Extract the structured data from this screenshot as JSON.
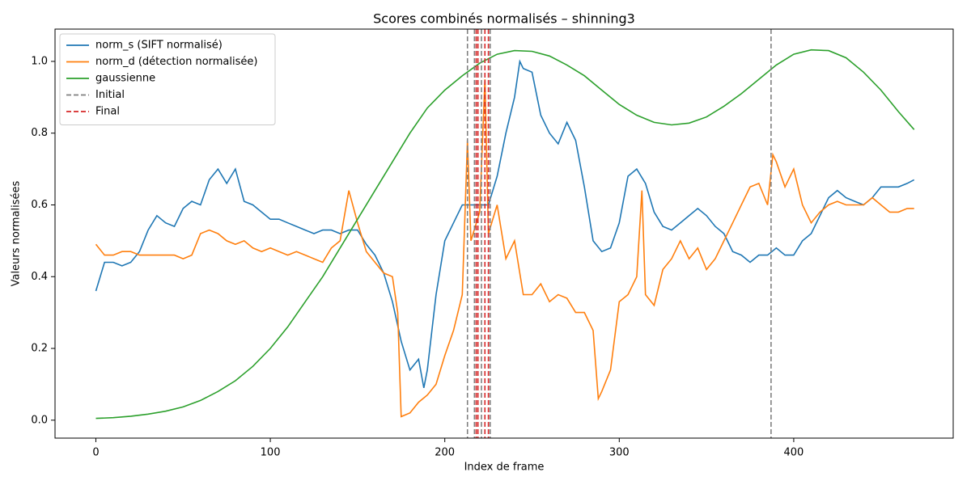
{
  "chart_data": {
    "type": "line",
    "title": "Scores combinés normalisés – shinning3",
    "x_label": "Index de frame",
    "y_label": "Valeurs normalisées",
    "xlim": [
      -23.4,
      491.4
    ],
    "ylim": [
      -0.05,
      1.09
    ],
    "xticks": [
      0,
      100,
      200,
      300,
      400
    ],
    "yticks": [
      {
        "value": 0,
        "label": "0.0"
      },
      0.2,
      0.4,
      0.6,
      0.8,
      {
        "value": 1,
        "label": "1.0"
      }
    ],
    "legend": "upper left",
    "series": [
      {
        "name": "norm_s (SIFT normalisé)",
        "color": "#1f77b4",
        "x": [
          0,
          5,
          10,
          15,
          20,
          25,
          30,
          35,
          40,
          45,
          50,
          55,
          60,
          65,
          70,
          75,
          80,
          85,
          90,
          95,
          100,
          105,
          110,
          115,
          120,
          125,
          130,
          135,
          140,
          145,
          150,
          155,
          160,
          165,
          170,
          175,
          180,
          185,
          188,
          190,
          195,
          200,
          205,
          210,
          215,
          220,
          225,
          230,
          235,
          240,
          243,
          245,
          250,
          255,
          260,
          265,
          270,
          275,
          280,
          285,
          290,
          295,
          300,
          305,
          310,
          315,
          320,
          325,
          330,
          335,
          340,
          345,
          350,
          355,
          360,
          365,
          370,
          375,
          380,
          385,
          390,
          395,
          400,
          405,
          410,
          415,
          420,
          425,
          430,
          435,
          440,
          445,
          450,
          455,
          460,
          465,
          469
        ],
        "values": [
          0.36,
          0.44,
          0.44,
          0.43,
          0.44,
          0.47,
          0.53,
          0.57,
          0.55,
          0.54,
          0.59,
          0.61,
          0.6,
          0.67,
          0.7,
          0.66,
          0.7,
          0.61,
          0.6,
          0.58,
          0.56,
          0.56,
          0.55,
          0.54,
          0.53,
          0.52,
          0.53,
          0.53,
          0.52,
          0.53,
          0.53,
          0.49,
          0.46,
          0.41,
          0.33,
          0.22,
          0.14,
          0.17,
          0.09,
          0.14,
          0.35,
          0.5,
          0.55,
          0.6,
          0.6,
          0.6,
          0.6,
          0.68,
          0.8,
          0.9,
          1.0,
          0.98,
          0.97,
          0.85,
          0.8,
          0.77,
          0.83,
          0.78,
          0.65,
          0.5,
          0.47,
          0.48,
          0.55,
          0.68,
          0.7,
          0.66,
          0.58,
          0.54,
          0.53,
          0.55,
          0.57,
          0.59,
          0.57,
          0.54,
          0.52,
          0.47,
          0.46,
          0.44,
          0.46,
          0.46,
          0.48,
          0.46,
          0.46,
          0.5,
          0.52,
          0.57,
          0.62,
          0.64,
          0.62,
          0.61,
          0.6,
          0.62,
          0.65,
          0.65,
          0.65,
          0.66,
          0.67
        ]
      },
      {
        "name": "norm_d (détection normalisée)",
        "color": "#ff7f0e",
        "x": [
          0,
          5,
          10,
          15,
          20,
          25,
          30,
          35,
          40,
          45,
          50,
          55,
          60,
          65,
          70,
          75,
          80,
          85,
          90,
          95,
          100,
          105,
          110,
          115,
          120,
          125,
          130,
          135,
          140,
          145,
          150,
          155,
          160,
          165,
          170,
          173,
          175,
          180,
          185,
          190,
          195,
          200,
          205,
          210,
          213,
          215,
          220,
          223,
          225,
          230,
          235,
          240,
          245,
          250,
          255,
          260,
          265,
          270,
          275,
          280,
          285,
          288,
          290,
          295,
          300,
          305,
          310,
          313,
          315,
          320,
          325,
          330,
          335,
          340,
          345,
          350,
          355,
          360,
          365,
          370,
          375,
          380,
          385,
          388,
          390,
          395,
          400,
          405,
          410,
          415,
          420,
          425,
          430,
          435,
          440,
          445,
          450,
          455,
          460,
          465,
          469
        ],
        "values": [
          0.49,
          0.46,
          0.46,
          0.47,
          0.47,
          0.46,
          0.46,
          0.46,
          0.46,
          0.46,
          0.45,
          0.46,
          0.52,
          0.53,
          0.52,
          0.5,
          0.49,
          0.5,
          0.48,
          0.47,
          0.48,
          0.47,
          0.46,
          0.47,
          0.46,
          0.45,
          0.44,
          0.48,
          0.5,
          0.64,
          0.55,
          0.47,
          0.44,
          0.41,
          0.4,
          0.3,
          0.01,
          0.02,
          0.05,
          0.07,
          0.1,
          0.18,
          0.25,
          0.35,
          0.78,
          0.5,
          0.58,
          0.95,
          0.52,
          0.6,
          0.45,
          0.5,
          0.35,
          0.35,
          0.38,
          0.33,
          0.35,
          0.34,
          0.3,
          0.3,
          0.25,
          0.06,
          0.08,
          0.14,
          0.33,
          0.35,
          0.4,
          0.64,
          0.35,
          0.32,
          0.42,
          0.45,
          0.5,
          0.45,
          0.48,
          0.42,
          0.45,
          0.5,
          0.55,
          0.6,
          0.65,
          0.66,
          0.6,
          0.74,
          0.72,
          0.65,
          0.7,
          0.6,
          0.55,
          0.58,
          0.6,
          0.61,
          0.6,
          0.6,
          0.6,
          0.62,
          0.6,
          0.58,
          0.58,
          0.59,
          0.59
        ]
      },
      {
        "name": "gaussienne",
        "color": "#2ca02c",
        "x": [
          0,
          10,
          20,
          30,
          40,
          50,
          60,
          70,
          80,
          90,
          100,
          110,
          120,
          130,
          140,
          150,
          160,
          170,
          180,
          190,
          200,
          210,
          220,
          230,
          240,
          250,
          260,
          270,
          280,
          290,
          300,
          310,
          320,
          330,
          340,
          350,
          360,
          370,
          380,
          390,
          400,
          410,
          420,
          430,
          440,
          450,
          460,
          469
        ],
        "values": [
          0.005,
          0.007,
          0.011,
          0.017,
          0.025,
          0.037,
          0.055,
          0.08,
          0.11,
          0.15,
          0.2,
          0.26,
          0.33,
          0.4,
          0.48,
          0.56,
          0.64,
          0.72,
          0.8,
          0.87,
          0.92,
          0.96,
          0.995,
          1.02,
          1.03,
          1.028,
          1.015,
          0.99,
          0.96,
          0.92,
          0.88,
          0.85,
          0.83,
          0.823,
          0.828,
          0.845,
          0.875,
          0.91,
          0.95,
          0.99,
          1.02,
          1.032,
          1.03,
          1.01,
          0.97,
          0.92,
          0.86,
          0.81
        ]
      }
    ],
    "vlines": [
      {
        "name": "Initial",
        "color": "#808080",
        "x": [
          213,
          217,
          221,
          226,
          387
        ]
      },
      {
        "name": "Final",
        "color": "#d62728",
        "x": [
          218,
          219,
          223,
          225
        ]
      }
    ]
  }
}
